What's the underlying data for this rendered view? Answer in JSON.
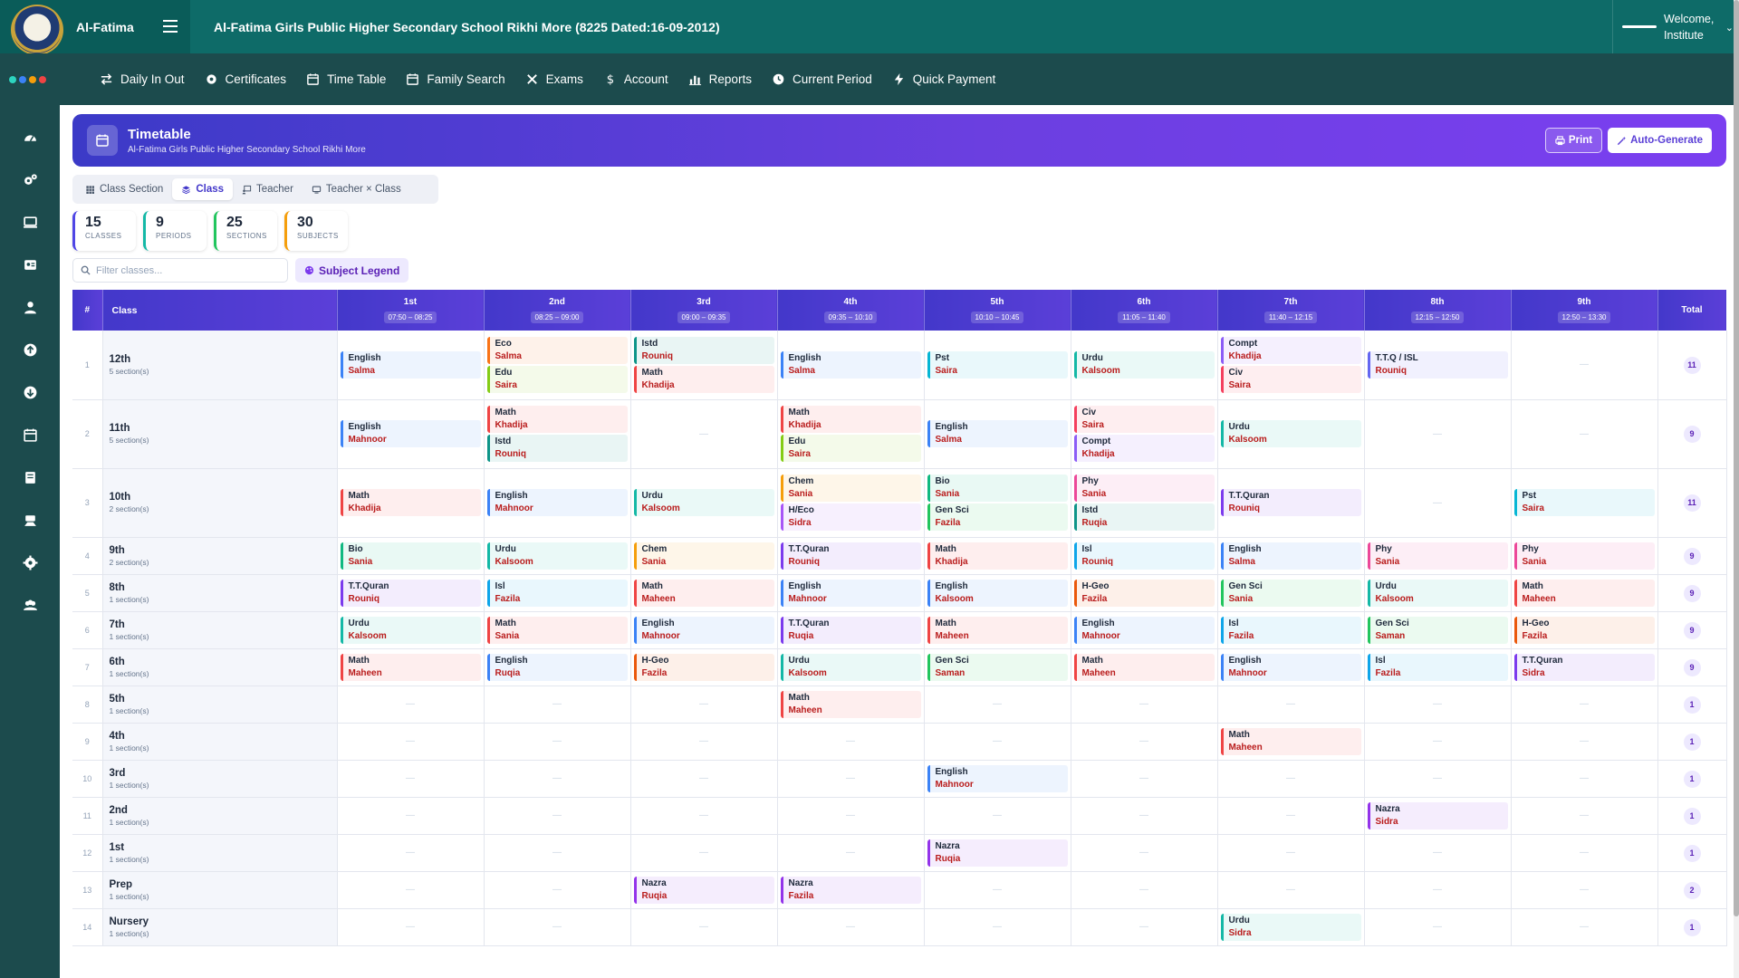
{
  "header": {
    "brand": "Al-Fatima",
    "school_title": "Al-Fatima Girls Public Higher Secondary School Rikhi More (8225 Dated:16-09-2012)",
    "welcome_line1": "Welcome,",
    "welcome_line2": "Institute"
  },
  "nav": [
    {
      "label": "Daily In Out",
      "icon": "swap-icon"
    },
    {
      "label": "Certificates",
      "icon": "gear-badge-icon"
    },
    {
      "label": "Time Table",
      "icon": "calendar-icon"
    },
    {
      "label": "Family Search",
      "icon": "calendar-icon"
    },
    {
      "label": "Exams",
      "icon": "tools-icon"
    },
    {
      "label": "Account",
      "icon": "dollar-icon"
    },
    {
      "label": "Reports",
      "icon": "bar-chart-icon"
    },
    {
      "label": "Current Period",
      "icon": "clock-icon"
    },
    {
      "label": "Quick Payment",
      "icon": "bolt-icon"
    }
  ],
  "sidebar": [
    "dashboard-icon",
    "settings-group-icon",
    "monitor-icon",
    "id-card-icon",
    "user-icon",
    "upload-icon",
    "download-icon",
    "calendar-icon",
    "book-icon",
    "hands-icon",
    "cog-icon",
    "users-icon"
  ],
  "colors": {
    "accent": "#4338ca",
    "topbar": "#0e6b68",
    "nav": "#1c4b4d"
  },
  "page": {
    "title": "Timetable",
    "subtitle": "Al-Fatima Girls Public Higher Secondary School Rikhi More",
    "print_label": "Print",
    "auto_label": "Auto-Generate"
  },
  "tabs": [
    {
      "label": "Class Section",
      "active": false
    },
    {
      "label": "Class",
      "active": true
    },
    {
      "label": "Teacher",
      "active": false
    },
    {
      "label": "Teacher × Class",
      "active": false
    }
  ],
  "stats": [
    {
      "value": "15",
      "label": "CLASSES",
      "color": "#4f46e5"
    },
    {
      "value": "9",
      "label": "PERIODS",
      "color": "#14b8a6"
    },
    {
      "value": "25",
      "label": "SECTIONS",
      "color": "#22c55e"
    },
    {
      "value": "30",
      "label": "SUBJECTS",
      "color": "#f59e0b"
    }
  ],
  "filter": {
    "placeholder": "Filter classes...",
    "legend_label": "Subject Legend"
  },
  "table": {
    "col_num": "#",
    "col_class": "Class",
    "col_total": "Total",
    "periods": [
      {
        "name": "1st",
        "time": "07:50 – 08:25"
      },
      {
        "name": "2nd",
        "time": "08:25 – 09:00"
      },
      {
        "name": "3rd",
        "time": "09:00 – 09:35"
      },
      {
        "name": "4th",
        "time": "09:35 – 10:10"
      },
      {
        "name": "5th",
        "time": "10:10 – 10:45"
      },
      {
        "name": "6th",
        "time": "11:05 – 11:40"
      },
      {
        "name": "7th",
        "time": "11:40 – 12:15"
      },
      {
        "name": "8th",
        "time": "12:15 – 12:50"
      },
      {
        "name": "9th",
        "time": "12:50 – 13:30"
      }
    ],
    "subject_colors": {
      "English": "#3b82f6",
      "Math": "#ef4444",
      "Urdu": "#14b8a6",
      "Eco": "#f97316",
      "Edu": "#84cc16",
      "Istd": "#0d9488",
      "Pst": "#06b6d4",
      "Compt": "#8b5cf6",
      "Civ": "#f43f5e",
      "T.T.Q / ISL": "#6366f1",
      "Chem": "#f59e0b",
      "H/Eco": "#a855f7",
      "Bio": "#10b981",
      "Gen Sci": "#22c55e",
      "Phy": "#ec4899",
      "T.T.Quran": "#7c3aed",
      "Isl": "#0ea5e9",
      "H-Geo": "#ea580c",
      "Nazra": "#9333ea"
    },
    "rows": [
      {
        "num": "1",
        "name": "12th",
        "sections": "5 section(s)",
        "size": "big",
        "total": "11",
        "cells": [
          [
            [
              "English",
              "Salma"
            ]
          ],
          [
            [
              "Eco",
              "Salma"
            ],
            [
              "Edu",
              "Saira"
            ]
          ],
          [
            [
              "Istd",
              "Rouniq"
            ],
            [
              "Math",
              "Khadija"
            ]
          ],
          [
            [
              "English",
              "Salma"
            ]
          ],
          [
            [
              "Pst",
              "Saira"
            ]
          ],
          [
            [
              "Urdu",
              "Kalsoom"
            ]
          ],
          [
            [
              "Compt",
              "Khadija"
            ],
            [
              "Civ",
              "Saira"
            ]
          ],
          [
            [
              "T.T.Q / ISL",
              "Rouniq"
            ]
          ],
          []
        ]
      },
      {
        "num": "2",
        "name": "11th",
        "sections": "5 section(s)",
        "size": "big",
        "total": "9",
        "cells": [
          [
            [
              "English",
              "Mahnoor"
            ]
          ],
          [
            [
              "Math",
              "Khadija"
            ],
            [
              "Istd",
              "Rouniq"
            ]
          ],
          [],
          [
            [
              "Math",
              "Khadija"
            ],
            [
              "Edu",
              "Saira"
            ]
          ],
          [
            [
              "English",
              "Salma"
            ]
          ],
          [
            [
              "Civ",
              "Saira"
            ],
            [
              "Compt",
              "Khadija"
            ]
          ],
          [
            [
              "Urdu",
              "Kalsoom"
            ]
          ],
          [],
          []
        ]
      },
      {
        "num": "3",
        "name": "10th",
        "sections": "2 section(s)",
        "size": "big",
        "total": "11",
        "cells": [
          [
            [
              "Math",
              "Khadija"
            ]
          ],
          [
            [
              "English",
              "Mahnoor"
            ]
          ],
          [
            [
              "Urdu",
              "Kalsoom"
            ]
          ],
          [
            [
              "Chem",
              "Sania"
            ],
            [
              "H/Eco",
              "Sidra"
            ]
          ],
          [
            [
              "Bio",
              "Sania"
            ],
            [
              "Gen Sci",
              "Fazila"
            ]
          ],
          [
            [
              "Phy",
              "Sania"
            ],
            [
              "Istd",
              "Ruqia"
            ]
          ],
          [
            [
              "T.T.Quran",
              "Rouniq"
            ]
          ],
          [],
          [
            [
              "Pst",
              "Saira"
            ]
          ]
        ]
      },
      {
        "num": "4",
        "name": "9th",
        "sections": "2 section(s)",
        "size": "mid",
        "total": "9",
        "cells": [
          [
            [
              "Bio",
              "Sania"
            ]
          ],
          [
            [
              "Urdu",
              "Kalsoom"
            ]
          ],
          [
            [
              "Chem",
              "Sania"
            ]
          ],
          [
            [
              "T.T.Quran",
              "Rouniq"
            ]
          ],
          [
            [
              "Math",
              "Khadija"
            ]
          ],
          [
            [
              "Isl",
              "Rouniq"
            ]
          ],
          [
            [
              "English",
              "Salma"
            ]
          ],
          [
            [
              "Phy",
              "Sania"
            ]
          ],
          [
            [
              "Phy",
              "Sania"
            ]
          ]
        ]
      },
      {
        "num": "5",
        "name": "8th",
        "sections": "1 section(s)",
        "size": "mid",
        "total": "9",
        "cells": [
          [
            [
              "T.T.Quran",
              "Rouniq"
            ]
          ],
          [
            [
              "Isl",
              "Fazila"
            ]
          ],
          [
            [
              "Math",
              "Maheen"
            ]
          ],
          [
            [
              "English",
              "Mahnoor"
            ]
          ],
          [
            [
              "English",
              "Kalsoom"
            ]
          ],
          [
            [
              "H-Geo",
              "Fazila"
            ]
          ],
          [
            [
              "Gen Sci",
              "Sania"
            ]
          ],
          [
            [
              "Urdu",
              "Kalsoom"
            ]
          ],
          [
            [
              "Math",
              "Maheen"
            ]
          ]
        ]
      },
      {
        "num": "6",
        "name": "7th",
        "sections": "1 section(s)",
        "size": "mid",
        "total": "9",
        "cells": [
          [
            [
              "Urdu",
              "Kalsoom"
            ]
          ],
          [
            [
              "Math",
              "Sania"
            ]
          ],
          [
            [
              "English",
              "Mahnoor"
            ]
          ],
          [
            [
              "T.T.Quran",
              "Ruqia"
            ]
          ],
          [
            [
              "Math",
              "Maheen"
            ]
          ],
          [
            [
              "English",
              "Mahnoor"
            ]
          ],
          [
            [
              "Isl",
              "Fazila"
            ]
          ],
          [
            [
              "Gen Sci",
              "Saman"
            ]
          ],
          [
            [
              "H-Geo",
              "Fazila"
            ]
          ]
        ]
      },
      {
        "num": "7",
        "name": "6th",
        "sections": "1 section(s)",
        "size": "mid",
        "total": "9",
        "cells": [
          [
            [
              "Math",
              "Maheen"
            ]
          ],
          [
            [
              "English",
              "Ruqia"
            ]
          ],
          [
            [
              "H-Geo",
              "Fazila"
            ]
          ],
          [
            [
              "Urdu",
              "Kalsoom"
            ]
          ],
          [
            [
              "Gen Sci",
              "Saman"
            ]
          ],
          [
            [
              "Math",
              "Maheen"
            ]
          ],
          [
            [
              "English",
              "Mahnoor"
            ]
          ],
          [
            [
              "Isl",
              "Fazila"
            ]
          ],
          [
            [
              "T.T.Quran",
              "Sidra"
            ]
          ]
        ]
      },
      {
        "num": "8",
        "name": "5th",
        "sections": "1 section(s)",
        "size": "mid",
        "total": "1",
        "cells": [
          [],
          [],
          [],
          [
            [
              "Math",
              "Maheen"
            ]
          ],
          [],
          [],
          [],
          [],
          []
        ]
      },
      {
        "num": "9",
        "name": "4th",
        "sections": "1 section(s)",
        "size": "mid",
        "total": "1",
        "cells": [
          [],
          [],
          [],
          [],
          [],
          [],
          [
            [
              "Math",
              "Maheen"
            ]
          ],
          [],
          []
        ]
      },
      {
        "num": "10",
        "name": "3rd",
        "sections": "1 section(s)",
        "size": "mid",
        "total": "1",
        "cells": [
          [],
          [],
          [],
          [],
          [
            [
              "English",
              "Mahnoor"
            ]
          ],
          [],
          [],
          [],
          []
        ]
      },
      {
        "num": "11",
        "name": "2nd",
        "sections": "1 section(s)",
        "size": "mid",
        "total": "1",
        "cells": [
          [],
          [],
          [],
          [],
          [],
          [],
          [],
          [
            [
              "Nazra",
              "Sidra"
            ]
          ],
          []
        ]
      },
      {
        "num": "12",
        "name": "1st",
        "sections": "1 section(s)",
        "size": "mid",
        "total": "1",
        "cells": [
          [],
          [],
          [],
          [],
          [
            [
              "Nazra",
              "Ruqia"
            ]
          ],
          [],
          [],
          [],
          []
        ]
      },
      {
        "num": "13",
        "name": "Prep",
        "sections": "1 section(s)",
        "size": "mid",
        "total": "2",
        "cells": [
          [],
          [],
          [
            [
              "Nazra",
              "Ruqia"
            ]
          ],
          [
            [
              "Nazra",
              "Fazila"
            ]
          ],
          [],
          [],
          [],
          [],
          []
        ]
      },
      {
        "num": "14",
        "name": "Nursery",
        "sections": "1 section(s)",
        "size": "mid",
        "total": "1",
        "cells": [
          [],
          [],
          [],
          [],
          [],
          [],
          [
            [
              "Urdu",
              "Sidra"
            ]
          ],
          [],
          []
        ]
      }
    ]
  }
}
